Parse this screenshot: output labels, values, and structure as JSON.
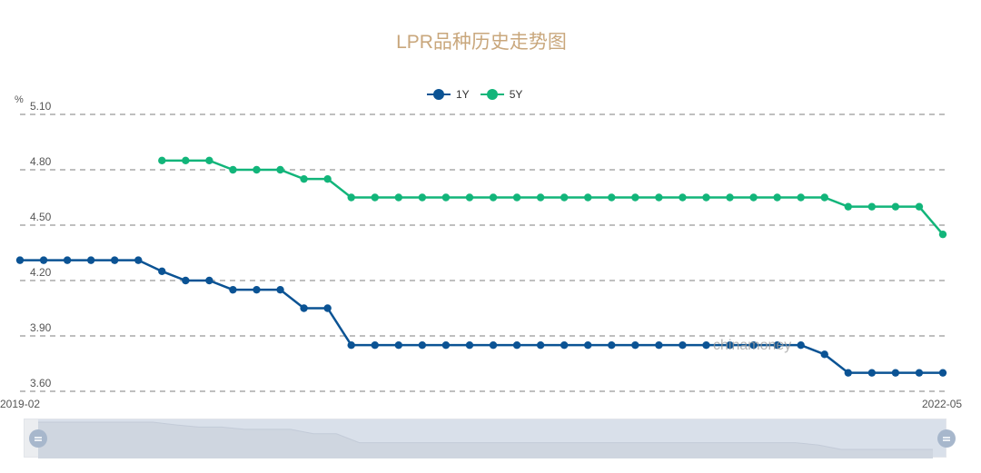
{
  "chart_data": {
    "type": "line",
    "title": "LPR品种历史走势图",
    "ylabel": "%",
    "xlabel": "",
    "ylim": [
      3.6,
      5.1
    ],
    "yticks": [
      "5.10",
      "4.80",
      "4.50",
      "4.20",
      "3.90",
      "3.60"
    ],
    "xtick_labels": [
      "2019-02",
      "2022-05"
    ],
    "grid": true,
    "legend_position": "top-center",
    "x": [
      "2019-02",
      "2019-03",
      "2019-04",
      "2019-05",
      "2019-06",
      "2019-07",
      "2019-08",
      "2019-09",
      "2019-10",
      "2019-11",
      "2019-12",
      "2020-01",
      "2020-02",
      "2020-03",
      "2020-04",
      "2020-05",
      "2020-06",
      "2020-07",
      "2020-08",
      "2020-09",
      "2020-10",
      "2020-11",
      "2020-12",
      "2021-01",
      "2021-02",
      "2021-03",
      "2021-04",
      "2021-05",
      "2021-06",
      "2021-07",
      "2021-08",
      "2021-09",
      "2021-10",
      "2021-11",
      "2021-12",
      "2022-01",
      "2022-02",
      "2022-03",
      "2022-04",
      "2022-05"
    ],
    "series": [
      {
        "name": "1Y",
        "color": "#0b5394",
        "values": [
          4.31,
          4.31,
          4.31,
          4.31,
          4.31,
          4.31,
          4.25,
          4.2,
          4.2,
          4.15,
          4.15,
          4.15,
          4.05,
          4.05,
          3.85,
          3.85,
          3.85,
          3.85,
          3.85,
          3.85,
          3.85,
          3.85,
          3.85,
          3.85,
          3.85,
          3.85,
          3.85,
          3.85,
          3.85,
          3.85,
          3.85,
          3.85,
          3.85,
          3.85,
          3.8,
          3.7,
          3.7,
          3.7,
          3.7,
          3.7
        ]
      },
      {
        "name": "5Y",
        "color": "#12b57a",
        "values": [
          null,
          null,
          null,
          null,
          null,
          null,
          4.85,
          4.85,
          4.85,
          4.8,
          4.8,
          4.8,
          4.75,
          4.75,
          4.65,
          4.65,
          4.65,
          4.65,
          4.65,
          4.65,
          4.65,
          4.65,
          4.65,
          4.65,
          4.65,
          4.65,
          4.65,
          4.65,
          4.65,
          4.65,
          4.65,
          4.65,
          4.65,
          4.65,
          4.65,
          4.6,
          4.6,
          4.6,
          4.6,
          4.45
        ]
      }
    ]
  },
  "header": {
    "title": "LPR品种历史走势图",
    "unit": "%"
  },
  "legend": [
    {
      "label": "1Y",
      "color": "#0b5394"
    },
    {
      "label": "5Y",
      "color": "#12b57a"
    }
  ],
  "axis": {
    "start_label": "2019-02",
    "end_label": "2022-05"
  },
  "watermark": "chinamoney",
  "slider": {
    "start": "2019-02",
    "end": "2022-05"
  }
}
